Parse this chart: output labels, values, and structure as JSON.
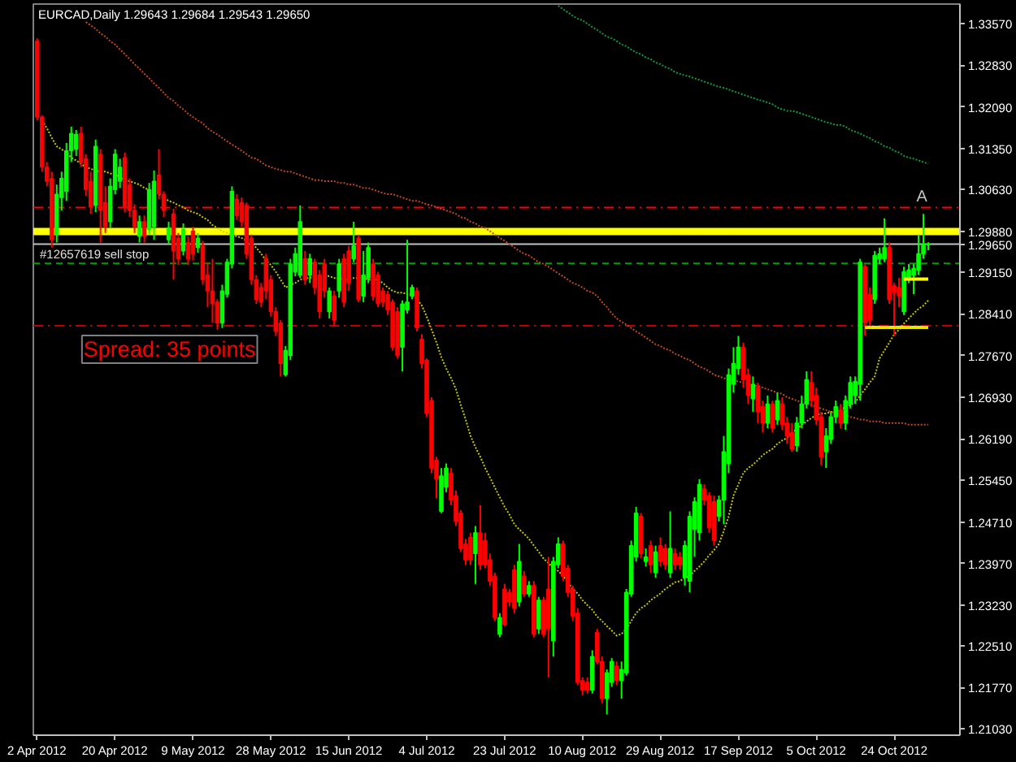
{
  "chart_data": {
    "type": "candlestick",
    "title": "EURCAD,Daily 1.29643 1.29684 1.29543 1.29650",
    "categories": [
      "2 Apr 2012",
      null,
      null,
      null,
      null,
      null,
      null,
      null,
      null,
      null,
      null,
      null,
      null,
      null,
      null,
      null,
      "20 Apr 2012",
      null,
      null,
      null,
      null,
      null,
      null,
      null,
      null,
      null,
      null,
      null,
      null,
      null,
      null,
      null,
      "9 May 2012",
      null,
      null,
      null,
      null,
      null,
      null,
      null,
      null,
      null,
      null,
      null,
      null,
      null,
      null,
      null,
      "28 May 2012",
      null,
      null,
      null,
      null,
      null,
      null,
      null,
      null,
      null,
      null,
      null,
      null,
      null,
      null,
      null,
      "15 Jun 2012",
      null,
      null,
      null,
      null,
      null,
      null,
      null,
      null,
      null,
      null,
      null,
      null,
      null,
      null,
      null,
      "4 Jul 2012",
      null,
      null,
      null,
      null,
      null,
      null,
      null,
      null,
      null,
      null,
      null,
      null,
      null,
      null,
      null,
      "23 Jul 2012",
      null,
      null,
      null,
      null,
      null,
      null,
      null,
      null,
      null,
      null,
      null,
      null,
      null,
      null,
      null,
      "10 Aug 2012",
      null,
      null,
      null,
      null,
      null,
      null,
      null,
      null,
      null,
      null,
      null,
      null,
      null,
      null,
      null,
      "29 Aug 2012",
      null,
      null,
      null,
      null,
      null,
      null,
      null,
      null,
      null,
      null,
      null,
      null,
      null,
      null,
      null,
      "17 Sep 2012",
      null,
      null,
      null,
      null,
      null,
      null,
      null,
      null,
      null,
      null,
      null,
      null,
      null,
      null,
      null,
      "5 Oct 2012",
      null,
      null,
      null,
      null,
      null,
      null,
      null,
      null,
      null,
      null,
      null,
      null,
      null,
      null,
      null,
      "24 Oct 2012",
      null,
      null,
      null,
      null,
      null,
      null,
      null
    ],
    "ohlc": [
      [
        1.3326,
        1.3331,
        1.3185,
        1.3191
      ],
      [
        1.3191,
        1.3194,
        1.3094,
        1.3102
      ],
      [
        1.3102,
        1.3111,
        1.3068,
        1.3077
      ],
      [
        1.3082,
        1.3094,
        1.2959,
        1.2973
      ],
      [
        1.2982,
        1.3071,
        1.2968,
        1.3054
      ],
      [
        1.3048,
        1.3094,
        1.3025,
        1.3082
      ],
      [
        1.3059,
        1.3145,
        1.3042,
        1.3131
      ],
      [
        1.3131,
        1.3174,
        1.3111,
        1.3162
      ],
      [
        1.3134,
        1.3168,
        1.3122,
        1.316
      ],
      [
        1.3162,
        1.3174,
        1.3102,
        1.3111
      ],
      [
        1.3117,
        1.3125,
        1.3051,
        1.3062
      ],
      [
        1.3077,
        1.3094,
        1.3019,
        1.3031
      ],
      [
        1.3034,
        1.3151,
        1.3022,
        1.3139
      ],
      [
        1.3125,
        1.3134,
        1.2968,
        1.3025
      ],
      [
        1.3039,
        1.3068,
        1.2985,
        1.2996
      ],
      [
        1.3005,
        1.3082,
        1.2994,
        1.3068
      ],
      [
        1.3062,
        1.3134,
        1.3054,
        1.3125
      ],
      [
        1.3077,
        1.3117,
        1.3065,
        1.3102
      ],
      [
        1.3119,
        1.3128,
        1.3022,
        1.3031
      ],
      [
        1.3071,
        1.3082,
        1.3013,
        1.3025
      ],
      [
        1.3025,
        1.3036,
        1.2985,
        1.2996
      ],
      [
        1.2979,
        1.3016,
        1.2968,
        1.3005
      ],
      [
        1.3005,
        1.3016,
        1.2968,
        1.2979
      ],
      [
        1.2991,
        1.3074,
        1.2982,
        1.3062
      ],
      [
        1.2996,
        1.3096,
        1.2973,
        1.3077
      ],
      [
        1.3088,
        1.3134,
        1.3045,
        1.3054
      ],
      [
        1.3054,
        1.3059,
        1.3013,
        1.3025
      ],
      [
        1.2973,
        1.3005,
        1.2965,
        1.2994
      ],
      [
        1.3019,
        1.3028,
        1.2902,
        1.2953
      ],
      [
        1.2976,
        1.2985,
        1.2928,
        1.2939
      ],
      [
        1.2953,
        1.3002,
        1.2945,
        1.2991
      ],
      [
        1.2968,
        1.2979,
        1.2928,
        1.2939
      ],
      [
        1.2988,
        1.2996,
        1.2936,
        1.2948
      ],
      [
        1.2959,
        1.2985,
        1.295,
        1.2976
      ],
      [
        1.2962,
        1.2971,
        1.2893,
        1.2902
      ],
      [
        1.291,
        1.2933,
        1.2853,
        1.2882
      ],
      [
        1.2882,
        1.2939,
        1.2825,
        1.2859
      ],
      [
        1.2862,
        1.2867,
        1.2813,
        1.2825
      ],
      [
        1.2825,
        1.2893,
        1.2816,
        1.2882
      ],
      [
        1.2876,
        1.2939,
        1.287,
        1.2933
      ],
      [
        1.293,
        1.3068,
        1.2922,
        1.3059
      ],
      [
        1.3045,
        1.3054,
        1.3008,
        1.3016
      ],
      [
        1.3039,
        1.3048,
        1.2996,
        1.3005
      ],
      [
        1.3034,
        1.3039,
        1.2939,
        1.2948
      ],
      [
        1.2976,
        1.2982,
        1.2893,
        1.2902
      ],
      [
        1.2902,
        1.291,
        1.2859,
        1.2867
      ],
      [
        1.2888,
        1.2896,
        1.2853,
        1.2862
      ],
      [
        1.2939,
        1.2948,
        1.2867,
        1.2882
      ],
      [
        1.2902,
        1.291,
        1.2836,
        1.2845
      ],
      [
        1.2845,
        1.2853,
        1.2802,
        1.281
      ],
      [
        1.2825,
        1.283,
        1.273,
        1.2753
      ],
      [
        1.2733,
        1.2784,
        1.273,
        1.2776
      ],
      [
        1.2767,
        1.2939,
        1.2759,
        1.293
      ],
      [
        1.2916,
        1.2959,
        1.2908,
        1.2948
      ],
      [
        1.291,
        1.3034,
        1.2905,
        1.3005
      ],
      [
        1.2939,
        1.2953,
        1.2893,
        1.2902
      ],
      [
        1.291,
        1.2948,
        1.2896,
        1.2939
      ],
      [
        1.2933,
        1.2939,
        1.2876,
        1.2888
      ],
      [
        1.291,
        1.2919,
        1.2833,
        1.2845
      ],
      [
        1.293,
        1.2939,
        1.287,
        1.2882
      ],
      [
        1.2845,
        1.2888,
        1.2833,
        1.2882
      ],
      [
        1.2873,
        1.2882,
        1.2819,
        1.283
      ],
      [
        1.2882,
        1.2939,
        1.287,
        1.293
      ],
      [
        1.2939,
        1.2948,
        1.2853,
        1.2862
      ],
      [
        1.2953,
        1.2962,
        1.2882,
        1.2896
      ],
      [
        1.2939,
        1.3005,
        1.2933,
        1.2962
      ],
      [
        1.2976,
        1.2982,
        1.2862,
        1.2867
      ],
      [
        1.2873,
        1.2953,
        1.2862,
        1.291
      ],
      [
        1.2905,
        1.2968,
        1.2896,
        1.2959
      ],
      [
        1.293,
        1.2939,
        1.2865,
        1.2873
      ],
      [
        1.291,
        1.2916,
        1.2853,
        1.2859
      ],
      [
        1.2882,
        1.2888,
        1.2853,
        1.2862
      ],
      [
        1.2876,
        1.2882,
        1.2839,
        1.2848
      ],
      [
        1.2862,
        1.2867,
        1.2776,
        1.2782
      ],
      [
        1.2845,
        1.2853,
        1.2762,
        1.2767
      ],
      [
        1.2782,
        1.2865,
        1.2739,
        1.2859
      ],
      [
        1.2848,
        1.2973,
        1.2842,
        1.2862
      ],
      [
        1.2873,
        1.2893,
        1.2867,
        1.2888
      ],
      [
        1.2882,
        1.2888,
        1.281,
        1.2816
      ],
      [
        1.2796,
        1.2805,
        1.2744,
        1.2753
      ],
      [
        1.2759,
        1.2762,
        1.2658,
        1.2664
      ],
      [
        1.2687,
        1.2693,
        1.2558,
        1.2567
      ],
      [
        1.2581,
        1.2587,
        1.2513,
        1.2547
      ],
      [
        1.249,
        1.2567,
        1.2487,
        1.2553
      ],
      [
        1.2533,
        1.2575,
        1.2524,
        1.2567
      ],
      [
        1.2558,
        1.2567,
        1.2501,
        1.251
      ],
      [
        1.2518,
        1.2527,
        1.2464,
        1.2472
      ],
      [
        1.2487,
        1.2492,
        1.2418,
        1.2424
      ],
      [
        1.2432,
        1.2441,
        1.2395,
        1.2404
      ],
      [
        1.2444,
        1.2452,
        1.2395,
        1.2404
      ],
      [
        1.2415,
        1.2464,
        1.2361,
        1.2452
      ],
      [
        1.2452,
        1.2501,
        1.2386,
        1.2395
      ],
      [
        1.2438,
        1.2452,
        1.2389,
        1.2395
      ],
      [
        1.2404,
        1.2415,
        1.2358,
        1.2366
      ],
      [
        1.2375,
        1.2381,
        1.2295,
        1.2301
      ],
      [
        1.2272,
        1.2309,
        1.2266,
        1.2301
      ],
      [
        1.2352,
        1.2361,
        1.2286,
        1.2289
      ],
      [
        1.2346,
        1.2352,
        1.2321,
        1.2329
      ],
      [
        1.2386,
        1.2395,
        1.2309,
        1.2318
      ],
      [
        1.2329,
        1.2432,
        1.2321,
        1.2401
      ],
      [
        1.2375,
        1.2384,
        1.2338,
        1.2343
      ],
      [
        1.2343,
        1.2366,
        1.2338,
        1.2358
      ],
      [
        1.2358,
        1.2366,
        1.2266,
        1.2272
      ],
      [
        1.2281,
        1.2338,
        1.2272,
        1.2332
      ],
      [
        1.2332,
        1.2338,
        1.2266,
        1.2272
      ],
      [
        1.2352,
        1.2409,
        1.2195,
        1.2281
      ],
      [
        1.226,
        1.2409,
        1.2232,
        1.2401
      ],
      [
        1.2395,
        1.2444,
        1.2389,
        1.2432
      ],
      [
        1.2432,
        1.2438,
        1.2366,
        1.2375
      ],
      [
        1.2389,
        1.2395,
        1.2338,
        1.2346
      ],
      [
        1.2352,
        1.2358,
        1.2295,
        1.2304
      ],
      [
        1.2309,
        1.2318,
        1.2181,
        1.2186
      ],
      [
        1.2189,
        1.2195,
        1.2163,
        1.2172
      ],
      [
        1.2186,
        1.2195,
        1.2166,
        1.2172
      ],
      [
        1.2172,
        1.2243,
        1.2166,
        1.2232
      ],
      [
        1.2275,
        1.2281,
        1.2218,
        1.2223
      ],
      [
        1.2223,
        1.2232,
        1.2149,
        1.2157
      ],
      [
        1.2157,
        1.2209,
        1.2129,
        1.2203
      ],
      [
        1.2186,
        1.2229,
        1.2178,
        1.2223
      ],
      [
        1.2215,
        1.2223,
        1.2181,
        1.2189
      ],
      [
        1.2189,
        1.2223,
        1.2157,
        1.2209
      ],
      [
        1.2203,
        1.2352,
        1.2198,
        1.2346
      ],
      [
        1.2343,
        1.2438,
        1.2338,
        1.2429
      ],
      [
        1.2409,
        1.2498,
        1.2401,
        1.2487
      ],
      [
        1.2481,
        1.2487,
        1.2407,
        1.2415
      ],
      [
        1.2401,
        1.2424,
        1.2392,
        1.2409
      ],
      [
        1.2429,
        1.2438,
        1.2381,
        1.2395
      ],
      [
        1.2381,
        1.2429,
        1.2372,
        1.2418
      ],
      [
        1.2429,
        1.2444,
        1.2392,
        1.2401
      ],
      [
        1.2424,
        1.2432,
        1.2386,
        1.2395
      ],
      [
        1.2381,
        1.249,
        1.2372,
        1.2424
      ],
      [
        1.2415,
        1.2424,
        1.2386,
        1.2395
      ],
      [
        1.2409,
        1.2418,
        1.2386,
        1.2395
      ],
      [
        1.2372,
        1.2438,
        1.2358,
        1.2429
      ],
      [
        1.2366,
        1.249,
        1.2346,
        1.2481
      ],
      [
        1.2458,
        1.2515,
        1.2409,
        1.2507
      ],
      [
        1.2452,
        1.2547,
        1.2438,
        1.2538
      ],
      [
        1.253,
        1.2538,
        1.2501,
        1.251
      ],
      [
        1.2518,
        1.2524,
        1.2452,
        1.2461
      ],
      [
        1.2507,
        1.2518,
        1.2429,
        1.2438
      ],
      [
        1.2481,
        1.2518,
        1.2472,
        1.251
      ],
      [
        1.251,
        1.2624,
        1.2467,
        1.2596
      ],
      [
        1.2575,
        1.2744,
        1.2558,
        1.2733
      ],
      [
        1.2716,
        1.2782,
        1.2701,
        1.2753
      ],
      [
        1.2744,
        1.2802,
        1.2733,
        1.2782
      ],
      [
        1.2782,
        1.279,
        1.271,
        1.2724
      ],
      [
        1.2733,
        1.2744,
        1.2681,
        1.2696
      ],
      [
        1.269,
        1.273,
        1.2667,
        1.2716
      ],
      [
        1.271,
        1.2719,
        1.2647,
        1.2667
      ],
      [
        1.2676,
        1.2687,
        1.263,
        1.2647
      ],
      [
        1.2647,
        1.2696,
        1.2638,
        1.2681
      ],
      [
        1.2681,
        1.2687,
        1.263,
        1.2638
      ],
      [
        1.2653,
        1.2701,
        1.2644,
        1.2687
      ],
      [
        1.2681,
        1.2693,
        1.2635,
        1.2644
      ],
      [
        1.2647,
        1.2658,
        1.261,
        1.2624
      ],
      [
        1.263,
        1.2647,
        1.2596,
        1.2601
      ],
      [
        1.2607,
        1.2658,
        1.2596,
        1.2647
      ],
      [
        1.2647,
        1.2696,
        1.2638,
        1.2681
      ],
      [
        1.2681,
        1.2739,
        1.2673,
        1.2724
      ],
      [
        1.2719,
        1.2739,
        1.2676,
        1.2687
      ],
      [
        1.2696,
        1.271,
        1.2644,
        1.2653
      ],
      [
        1.2658,
        1.2667,
        1.2572,
        1.2587
      ],
      [
        1.2596,
        1.2638,
        1.2567,
        1.2624
      ],
      [
        1.2618,
        1.2667,
        1.261,
        1.2658
      ],
      [
        1.2658,
        1.2687,
        1.2647,
        1.2676
      ],
      [
        1.267,
        1.2681,
        1.2638,
        1.2647
      ],
      [
        1.2647,
        1.2696,
        1.2635,
        1.2687
      ],
      [
        1.2681,
        1.273,
        1.2673,
        1.2719
      ],
      [
        1.2696,
        1.273,
        1.2681,
        1.2721
      ],
      [
        1.2716,
        1.2939,
        1.2687,
        1.2933
      ],
      [
        1.2925,
        1.293,
        1.2802,
        1.2825
      ],
      [
        1.2876,
        1.2888,
        1.2816,
        1.283
      ],
      [
        1.2867,
        1.2953,
        1.2859,
        1.2945
      ],
      [
        1.2939,
        1.2959,
        1.293,
        1.2948
      ],
      [
        1.2939,
        1.3011,
        1.2933,
        1.2959
      ],
      [
        1.2959,
        1.2968,
        1.2859,
        1.2867
      ],
      [
        1.2891,
        1.2896,
        1.2802,
        1.2879
      ],
      [
        1.2888,
        1.2905,
        1.2853,
        1.2873
      ],
      [
        1.2845,
        1.2925,
        1.2839,
        1.2916
      ],
      [
        1.2905,
        1.293,
        1.2896,
        1.2919
      ],
      [
        1.291,
        1.293,
        1.2876,
        1.2922
      ],
      [
        1.2919,
        1.2982,
        1.291,
        1.2948
      ],
      [
        1.2948,
        1.3019,
        1.2939,
        1.2965
      ],
      [
        1.29643,
        1.29684,
        1.29543,
        1.2965
      ]
    ],
    "colors": [
      "#ff0000",
      "#ff0000",
      "#ff0000",
      "#ff0000",
      "#00ff00",
      "#00ff00",
      "#00ff00",
      "#00ff00",
      "#00ff00",
      "#ff0000",
      "#ff0000",
      "#ff0000",
      "#00ff00",
      "#ff0000",
      "#ff0000",
      "#00ff00",
      "#00ff00",
      "#00ff00",
      "#ff0000",
      "#ff0000",
      "#ff0000",
      "#00ff00",
      "#ff0000",
      "#00ff00",
      "#00ff00",
      "#ff0000",
      "#ff0000",
      "#00ff00",
      "#ff0000",
      "#ff0000",
      "#00ff00",
      "#ff0000",
      "#ff0000",
      "#00ff00",
      "#ff0000",
      "#ff0000",
      "#ff0000",
      "#ff0000",
      "#00ff00",
      "#00ff00",
      "#00ff00",
      "#ff0000",
      "#ff0000",
      "#ff0000",
      "#ff0000",
      "#ff0000",
      "#ff0000",
      "#ff0000",
      "#ff0000",
      "#ff0000",
      "#ff0000",
      "#00ff00",
      "#00ff00",
      "#00ff00",
      "#00ff00",
      "#ff0000",
      "#00ff00",
      "#ff0000",
      "#ff0000",
      "#ff0000",
      "#00ff00",
      "#ff0000",
      "#00ff00",
      "#ff0000",
      "#ff0000",
      "#00ff00",
      "#ff0000",
      "#00ff00",
      "#00ff00",
      "#ff0000",
      "#ff0000",
      "#ff0000",
      "#ff0000",
      "#ff0000",
      "#ff0000",
      "#00ff00",
      "#00ff00",
      "#00ff00",
      "#ff0000",
      "#ff0000",
      "#ff0000",
      "#ff0000",
      "#ff0000",
      "#00ff00",
      "#00ff00",
      "#ff0000",
      "#ff0000",
      "#ff0000",
      "#ff0000",
      "#ff0000",
      "#00ff00",
      "#ff0000",
      "#ff0000",
      "#ff0000",
      "#ff0000",
      "#00ff00",
      "#ff0000",
      "#ff0000",
      "#ff0000",
      "#00ff00",
      "#ff0000",
      "#00ff00",
      "#ff0000",
      "#00ff00",
      "#ff0000",
      "#ff0000",
      "#00ff00",
      "#00ff00",
      "#ff0000",
      "#ff0000",
      "#ff0000",
      "#ff0000",
      "#ff0000",
      "#ff0000",
      "#00ff00",
      "#ff0000",
      "#ff0000",
      "#00ff00",
      "#00ff00",
      "#ff0000",
      "#00ff00",
      "#00ff00",
      "#00ff00",
      "#00ff00",
      "#ff0000",
      "#00ff00",
      "#ff0000",
      "#00ff00",
      "#ff0000",
      "#ff0000",
      "#00ff00",
      "#ff0000",
      "#ff0000",
      "#00ff00",
      "#00ff00",
      "#00ff00",
      "#00ff00",
      "#ff0000",
      "#ff0000",
      "#ff0000",
      "#00ff00",
      "#00ff00",
      "#00ff00",
      "#00ff00",
      "#00ff00",
      "#ff0000",
      "#ff0000",
      "#00ff00",
      "#ff0000",
      "#ff0000",
      "#00ff00",
      "#ff0000",
      "#00ff00",
      "#ff0000",
      "#ff0000",
      "#ff0000",
      "#00ff00",
      "#00ff00",
      "#00ff00",
      "#ff0000",
      "#ff0000",
      "#ff0000",
      "#00ff00",
      "#00ff00",
      "#00ff00",
      "#ff0000",
      "#00ff00",
      "#00ff00",
      "#00ff00",
      "#00ff00",
      "#ff0000",
      "#ff0000",
      "#00ff00",
      "#00ff00",
      "#00ff00",
      "#ff0000",
      "#ff0000",
      "#ff0000",
      "#00ff00",
      "#00ff00",
      "#00ff00",
      "#00ff00",
      "#00ff00",
      "#00ff00"
    ],
    "ylim": [
      1.2092,
      1.3392
    ],
    "yticks": [
      {
        "value": 1.3357,
        "label": "1.33570"
      },
      {
        "value": 1.3283,
        "label": "1.32830"
      },
      {
        "value": 1.3209,
        "label": "1.32090"
      },
      {
        "value": 1.3135,
        "label": "1.31350"
      },
      {
        "value": 1.3063,
        "label": "1.30630"
      },
      {
        "value": 1.2988,
        "label": "1.29880"
      },
      {
        "value": 1.2965,
        "label": "1.29650"
      },
      {
        "value": 1.2915,
        "label": "1.29150"
      },
      {
        "value": 1.2841,
        "label": "1.28410"
      },
      {
        "value": 1.2767,
        "label": "1.27670"
      },
      {
        "value": 1.2693,
        "label": "1.26930"
      },
      {
        "value": 1.2619,
        "label": "1.26190"
      },
      {
        "value": 1.2545,
        "label": "1.25450"
      },
      {
        "value": 1.2471,
        "label": "1.24710"
      },
      {
        "value": 1.2397,
        "label": "1.23970"
      },
      {
        "value": 1.2323,
        "label": "1.23230"
      },
      {
        "value": 1.2251,
        "label": "1.22510"
      },
      {
        "value": 1.2177,
        "label": "1.21770"
      },
      {
        "value": 1.2103,
        "label": "1.21030"
      }
    ],
    "series": [
      {
        "type": "line",
        "color": "#c8c800",
        "line_style": "dotted",
        "values": [
          null,
          1.3185,
          1.3171,
          1.3154,
          1.3139,
          1.3134,
          1.3128,
          1.3119,
          1.3114,
          1.3108,
          1.3102,
          1.3099,
          1.3096,
          1.3094,
          1.3094,
          1.3091,
          1.3088,
          1.3085,
          1.3079,
          1.3077,
          1.3074,
          1.3071,
          1.3065,
          1.3062,
          null,
          1.3054,
          1.3048,
          1.3042,
          1.3039,
          1.3034,
          1.3031,
          1.3025,
          1.3022,
          1.3019,
          1.3013,
          1.3008,
          1.2999,
          1.2994,
          1.2988,
          1.2985,
          1.2982,
          1.2979,
          1.2976,
          1.2971,
          1.2965,
          1.2959,
          1.2948,
          1.2936,
          1.2928,
          1.2916,
          1.2902,
          1.2888,
          1.2893,
          1.2896,
          1.2902,
          1.2905,
          1.2905,
          1.2908,
          null,
          1.291,
          1.2908,
          1.2905,
          1.2905,
          1.2902,
          1.2902,
          1.2905,
          1.2905,
          1.2905,
          1.2902,
          1.2902,
          1.2902,
          1.2896,
          1.2888,
          1.2882,
          1.2879,
          1.2879,
          1.2876,
          1.2876,
          1.2867,
          1.2856,
          1.2836,
          1.2813,
          1.279,
          1.2764,
          1.2744,
          1.2727,
          1.2707,
          1.2679,
          1.2653,
          1.2624,
          1.2604,
          1.2587,
          1.2567,
          1.255,
          1.2532,
          1.2515,
          1.2498,
          1.2484,
          1.2467,
          1.2458,
          1.245,
          1.2441,
          1.2429,
          1.2418,
          1.2406,
          1.2398,
          1.2389,
          1.2384,
          1.2375,
          1.2364,
          1.2352,
          1.2344,
          1.2332,
          1.2323,
          1.2315,
          1.2303,
          1.2295,
          1.2286,
          1.2278,
          1.2269,
          1.2272,
          1.2281,
          1.2295,
          1.2309,
          1.2318,
          1.2323,
          1.2332,
          1.2338,
          1.2344,
          1.2352,
          1.2358,
          1.2364,
          1.2366,
          1.2372,
          1.2375,
          1.2384,
          1.2392,
          1.2401,
          1.2412,
          1.2421,
          1.2432,
          1.2455,
          1.2481,
          1.2518,
          1.2538,
          1.2558,
          1.2567,
          1.2573,
          1.2581,
          1.259,
          1.2596,
          1.2601,
          1.261,
          1.2616,
          1.2621,
          1.263,
          1.2636,
          1.2644,
          1.265,
          1.2656,
          1.2661,
          1.2664,
          1.2664,
          1.2667,
          1.2667,
          1.267,
          1.2676,
          1.2679,
          1.2684,
          1.2696,
          1.2707,
          1.2719,
          1.273,
          1.2762,
          1.2776,
          1.279,
          1.2805,
          1.2813,
          1.2824,
          1.2833,
          1.2842,
          1.285,
          1.2856,
          1.2865
        ]
      },
      {
        "type": "line",
        "color": "#c04a20",
        "line_style": "dotted",
        "values": [
          null,
          null,
          null,
          null,
          null,
          null,
          null,
          null,
          null,
          null,
          1.336,
          1.3354,
          1.3348,
          1.334,
          1.3334,
          1.3326,
          1.332,
          1.3311,
          1.3303,
          1.3294,
          1.3285,
          1.3277,
          1.3268,
          1.326,
          1.3251,
          1.3243,
          1.3234,
          1.3225,
          1.322,
          1.3211,
          1.3205,
          1.3197,
          1.3191,
          1.3185,
          1.318,
          1.3171,
          1.3165,
          1.316,
          1.3154,
          1.3148,
          1.3142,
          1.3137,
          1.3131,
          1.3125,
          1.3119,
          1.3117,
          1.3111,
          1.3105,
          1.3102,
          1.3099,
          1.3097,
          1.3094,
          1.3094,
          1.3091,
          1.3088,
          1.3085,
          1.3082,
          1.3079,
          1.3079,
          1.3077,
          1.3077,
          1.3077,
          1.3074,
          1.3074,
          1.3071,
          1.3071,
          1.3068,
          1.3065,
          1.3065,
          1.3062,
          1.3059,
          1.3056,
          1.3054,
          1.3054,
          1.3051,
          1.3048,
          1.3045,
          1.3042,
          1.3042,
          1.3039,
          1.3036,
          1.3034,
          1.3031,
          1.3028,
          1.3025,
          1.3022,
          1.3019,
          1.3013,
          1.3011,
          1.3005,
          1.3002,
          1.2996,
          1.2994,
          1.2988,
          1.2982,
          1.2976,
          1.2971,
          1.2965,
          1.2959,
          1.2953,
          1.2948,
          1.2945,
          1.2939,
          1.2933,
          1.293,
          1.2925,
          1.2919,
          1.2913,
          1.2908,
          1.2902,
          1.2896,
          1.2893,
          1.2888,
          1.2882,
          1.2879,
          1.2873,
          1.2862,
          1.2853,
          1.2842,
          1.2833,
          1.2827,
          1.2822,
          1.2816,
          1.281,
          1.2805,
          1.2799,
          1.2793,
          1.2787,
          1.2784,
          1.2779,
          1.2776,
          1.277,
          1.2767,
          1.2762,
          1.2759,
          1.2753,
          1.2747,
          1.2744,
          1.2739,
          1.2733,
          1.273,
          1.2727,
          1.2724,
          1.2724,
          1.2721,
          1.2719,
          1.2716,
          1.2713,
          1.2713,
          1.271,
          1.2707,
          1.2704,
          1.2701,
          1.2699,
          1.2693,
          1.269,
          1.2687,
          1.2684,
          1.2681,
          1.2679,
          1.2676,
          1.2673,
          1.267,
          1.2667,
          1.2664,
          1.2661,
          1.2661,
          1.2658,
          1.2656,
          1.2653,
          1.2653,
          1.265,
          1.265,
          1.265,
          1.2647,
          1.2647,
          1.2647,
          1.2647,
          1.2647,
          1.2644,
          1.2644,
          1.2644,
          1.2644,
          1.2644
        ]
      },
      {
        "type": "line",
        "color": "#109a40",
        "line_style": "dotted",
        "values": [
          null,
          null,
          null,
          null,
          null,
          null,
          null,
          null,
          null,
          null,
          null,
          null,
          null,
          null,
          null,
          null,
          null,
          null,
          null,
          null,
          null,
          null,
          null,
          null,
          null,
          null,
          null,
          null,
          null,
          null,
          null,
          null,
          null,
          null,
          null,
          null,
          null,
          null,
          null,
          null,
          null,
          null,
          null,
          null,
          null,
          null,
          null,
          null,
          null,
          null,
          null,
          null,
          null,
          null,
          null,
          null,
          null,
          null,
          null,
          null,
          null,
          null,
          null,
          null,
          null,
          null,
          null,
          null,
          null,
          null,
          null,
          null,
          null,
          null,
          null,
          null,
          null,
          null,
          null,
          null,
          null,
          null,
          null,
          null,
          null,
          null,
          null,
          null,
          null,
          null,
          null,
          null,
          null,
          null,
          null,
          null,
          null,
          null,
          null,
          null,
          null,
          null,
          null,
          null,
          null,
          null,
          null,
          1.3389,
          1.3383,
          1.3377,
          1.3371,
          1.3366,
          1.3363,
          1.3357,
          1.3351,
          1.3346,
          1.334,
          1.3334,
          1.3331,
          1.3326,
          1.332,
          1.3317,
          1.3311,
          1.3306,
          1.3303,
          1.3297,
          1.3294,
          1.3288,
          1.3285,
          1.328,
          1.3277,
          1.3271,
          1.3268,
          1.3265,
          1.3263,
          1.326,
          1.3257,
          1.3254,
          1.3251,
          1.3248,
          1.3245,
          1.3243,
          1.324,
          1.3237,
          1.3234,
          1.3231,
          1.3228,
          1.3225,
          1.3222,
          1.322,
          1.3217,
          1.3214,
          1.3208,
          1.3205,
          1.3202,
          1.3202,
          1.32,
          1.3197,
          1.3194,
          1.3191,
          1.3188,
          1.3185,
          1.3182,
          1.318,
          1.3177,
          1.3177,
          1.3174,
          1.3168,
          1.3165,
          1.3162,
          1.3157,
          1.3154,
          1.3148,
          1.3145,
          1.3139,
          1.3137,
          1.3131,
          1.3128,
          1.3122,
          1.3119,
          1.3117,
          1.3114,
          1.3111,
          1.3108
        ]
      },
      {
        "type": "line",
        "color": "#ffff00",
        "line_style": "solid",
        "values": [
          null,
          null,
          null,
          null,
          null,
          null,
          null,
          null,
          null,
          null,
          null,
          null,
          null,
          null,
          null,
          null,
          null,
          null,
          null,
          null,
          null,
          null,
          null,
          null,
          null,
          null,
          null,
          null,
          null,
          null,
          null,
          null,
          null,
          null,
          null,
          null,
          null,
          null,
          null,
          null,
          null,
          null,
          null,
          null,
          null,
          null,
          null,
          null,
          null,
          null,
          null,
          null,
          null,
          null,
          null,
          null,
          null,
          null,
          null,
          null,
          null,
          null,
          null,
          null,
          null,
          null,
          null,
          null,
          null,
          null,
          null,
          null,
          null,
          null,
          null,
          null,
          null,
          null,
          null,
          null,
          null,
          null,
          null,
          null,
          null,
          null,
          null,
          null,
          null,
          null,
          null,
          null,
          null,
          null,
          null,
          null,
          null,
          null,
          null,
          null,
          null,
          null,
          null,
          null,
          null,
          null,
          null,
          null,
          null,
          null,
          null,
          null,
          null,
          null,
          null,
          null,
          null,
          null,
          null,
          null,
          null,
          null,
          null,
          null,
          null,
          null,
          null,
          null,
          null,
          null,
          null,
          null,
          null,
          null,
          null,
          null,
          null,
          null,
          null,
          null,
          null,
          null,
          null,
          null,
          null,
          null,
          null,
          null,
          null,
          null,
          null,
          null,
          null,
          null,
          null,
          null,
          null,
          null,
          null,
          null,
          null,
          null,
          null,
          null,
          null,
          null,
          null,
          null,
          null,
          null,
          null,
          null,
          null,
          null,
          null,
          null,
          null,
          null,
          1.2903,
          1.2903,
          1.2903,
          1.2903,
          1.2903,
          1.2903
        ]
      },
      {
        "type": "line",
        "color": "#e6e600",
        "line_style": "solid",
        "values": [
          null,
          null,
          null,
          null,
          null,
          null,
          null,
          null,
          null,
          null,
          null,
          null,
          null,
          null,
          null,
          null,
          null,
          null,
          null,
          null,
          null,
          null,
          null,
          null,
          null,
          null,
          null,
          null,
          null,
          null,
          null,
          null,
          null,
          null,
          null,
          null,
          null,
          null,
          null,
          null,
          null,
          null,
          null,
          null,
          null,
          null,
          null,
          null,
          null,
          null,
          null,
          null,
          null,
          null,
          null,
          null,
          null,
          null,
          null,
          null,
          null,
          null,
          null,
          null,
          null,
          null,
          null,
          null,
          null,
          null,
          null,
          null,
          null,
          null,
          null,
          null,
          null,
          null,
          null,
          null,
          null,
          null,
          null,
          null,
          null,
          null,
          null,
          null,
          null,
          null,
          null,
          null,
          null,
          null,
          null,
          null,
          null,
          null,
          null,
          null,
          null,
          null,
          null,
          null,
          null,
          null,
          null,
          null,
          null,
          null,
          null,
          null,
          null,
          null,
          null,
          null,
          null,
          null,
          null,
          null,
          null,
          null,
          null,
          null,
          null,
          null,
          null,
          null,
          null,
          null,
          null,
          null,
          null,
          null,
          null,
          null,
          null,
          null,
          null,
          null,
          null,
          null,
          null,
          null,
          null,
          null,
          null,
          null,
          null,
          null,
          null,
          null,
          null,
          null,
          null,
          null,
          null,
          null,
          null,
          null,
          null,
          null,
          null,
          null,
          null,
          null,
          null,
          null,
          null,
          null,
          1.2817,
          1.2817,
          1.2817,
          1.2817,
          1.2817,
          1.2817,
          1.2817,
          1.2817,
          1.2817,
          1.2817,
          1.2817,
          1.2817,
          1.2817,
          1.2817
        ]
      }
    ],
    "ref_lines": [
      {
        "axis": "y",
        "value": 1.303,
        "color": "#ff0000",
        "line_style": "dashdot"
      },
      {
        "axis": "y",
        "value": 1.2965,
        "color": "#c0c0c0",
        "line_style": "solid"
      },
      {
        "axis": "y",
        "value": 1.2931,
        "label": "#12657619 sell stop",
        "color": "#00a000",
        "line_style": "dashed"
      },
      {
        "axis": "y",
        "value": 1.282,
        "color": "#c00000",
        "line_style": "dashdot"
      }
    ],
    "bands": [
      {
        "axis": "y",
        "from": 1.2981,
        "to": 1.2994,
        "color": "#ffff00"
      }
    ],
    "annotations": [
      "Spread: 35 points",
      "A"
    ]
  }
}
